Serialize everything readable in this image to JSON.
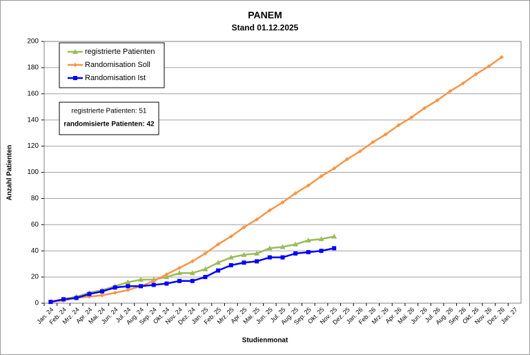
{
  "chart_data": {
    "type": "line",
    "title": "PANEM",
    "subtitle": "Stand 01.12.2025",
    "x_label": "Studienmonat",
    "y_label": "Anzahl Patienten",
    "categories": [
      "Jan. 24",
      "Feb. 24",
      "Mrz. 24",
      "Apr. 24",
      "Mai. 24",
      "Jun. 24",
      "Jul. 24",
      "Aug. 24",
      "Sep. 24",
      "Okt. 24",
      "Nov. 24",
      "Dez. 24",
      "Jan. 25",
      "Feb. 25",
      "Mrz. 25",
      "Apr. 25",
      "Mai. 25",
      "Jun. 25",
      "Jul. 25",
      "Aug. 25",
      "Sep. 25",
      "Okt. 25",
      "Nov. 25",
      "Dez. 25",
      "Jan. 26",
      "Feb. 26",
      "Mrz. 26",
      "Apr. 26",
      "Mai. 26",
      "Jun. 26",
      "Jul. 26",
      "Aug. 26",
      "Sep. 26",
      "Okt. 26",
      "Nov. 26",
      "Dez. 26",
      "Jan. 27"
    ],
    "series": [
      {
        "name": "registrierte Patienten",
        "color": "#9bbb59",
        "marker": "triangle",
        "values": [
          1,
          3,
          5,
          8,
          10,
          13,
          16,
          18,
          18,
          20,
          23,
          23,
          26,
          31,
          35,
          37,
          38,
          42,
          43,
          45,
          48,
          49,
          51,
          null,
          null,
          null,
          null,
          null,
          null,
          null,
          null,
          null,
          null,
          null,
          null,
          null,
          null
        ]
      },
      {
        "name": "Randomisation Soll",
        "color": "#f79646",
        "marker": "diamond",
        "values": [
          1,
          2,
          4,
          5,
          6,
          8,
          10,
          13,
          17,
          22,
          27,
          32,
          38,
          45,
          51,
          58,
          64,
          71,
          77,
          84,
          90,
          97,
          103,
          110,
          116,
          123,
          129,
          136,
          142,
          149,
          155,
          162,
          168,
          175,
          181,
          188,
          null
        ]
      },
      {
        "name": "Randomisation Ist",
        "color": "#0000ff",
        "marker": "square",
        "values": [
          1,
          3,
          4,
          7,
          9,
          12,
          13,
          13,
          14,
          15,
          17,
          17,
          20,
          25,
          29,
          31,
          32,
          35,
          35,
          38,
          39,
          40,
          42,
          null,
          null,
          null,
          null,
          null,
          null,
          null,
          null,
          null,
          null,
          null,
          null,
          null,
          null
        ]
      }
    ],
    "annotations": [
      "registrierte Patienten: 51",
      "randomisierte Patienten: 42"
    ],
    "ylim": [
      0,
      200
    ],
    "yticks": [
      0,
      20,
      40,
      60,
      80,
      100,
      120,
      140,
      160,
      180,
      200
    ],
    "grid": true,
    "legend": "upper left"
  }
}
